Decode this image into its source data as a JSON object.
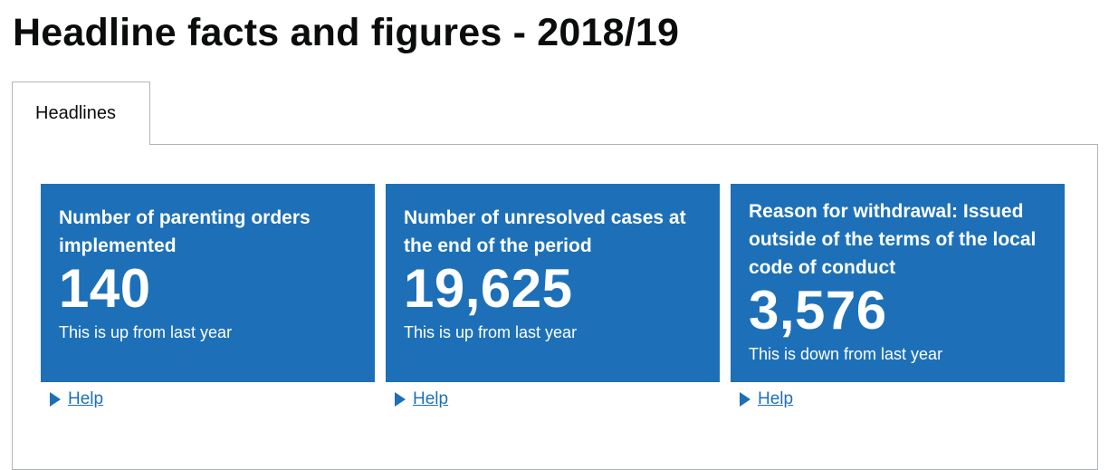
{
  "page": {
    "title": "Headline facts and figures - 2018/19"
  },
  "tabs": [
    {
      "label": "Headlines",
      "selected": true
    }
  ],
  "cards": [
    {
      "title": "Number of parenting orders implemented",
      "value": "140",
      "note": "This is up from last year",
      "help_label": "Help"
    },
    {
      "title": "Number of unresolved cases at the end of the period",
      "value": "19,625",
      "note": "This is up from last year",
      "help_label": "Help"
    },
    {
      "title": "Reason for withdrawal: Issued outside of the terms of the local code of conduct",
      "value": "3,576",
      "note": "This is down from last year",
      "help_label": "Help"
    }
  ],
  "colors": {
    "card_background": "#1d70b8",
    "link": "#1d70b8",
    "text": "#0b0c0c",
    "border": "#b1b4b6"
  },
  "icons": {
    "help": "play-triangle-icon"
  }
}
